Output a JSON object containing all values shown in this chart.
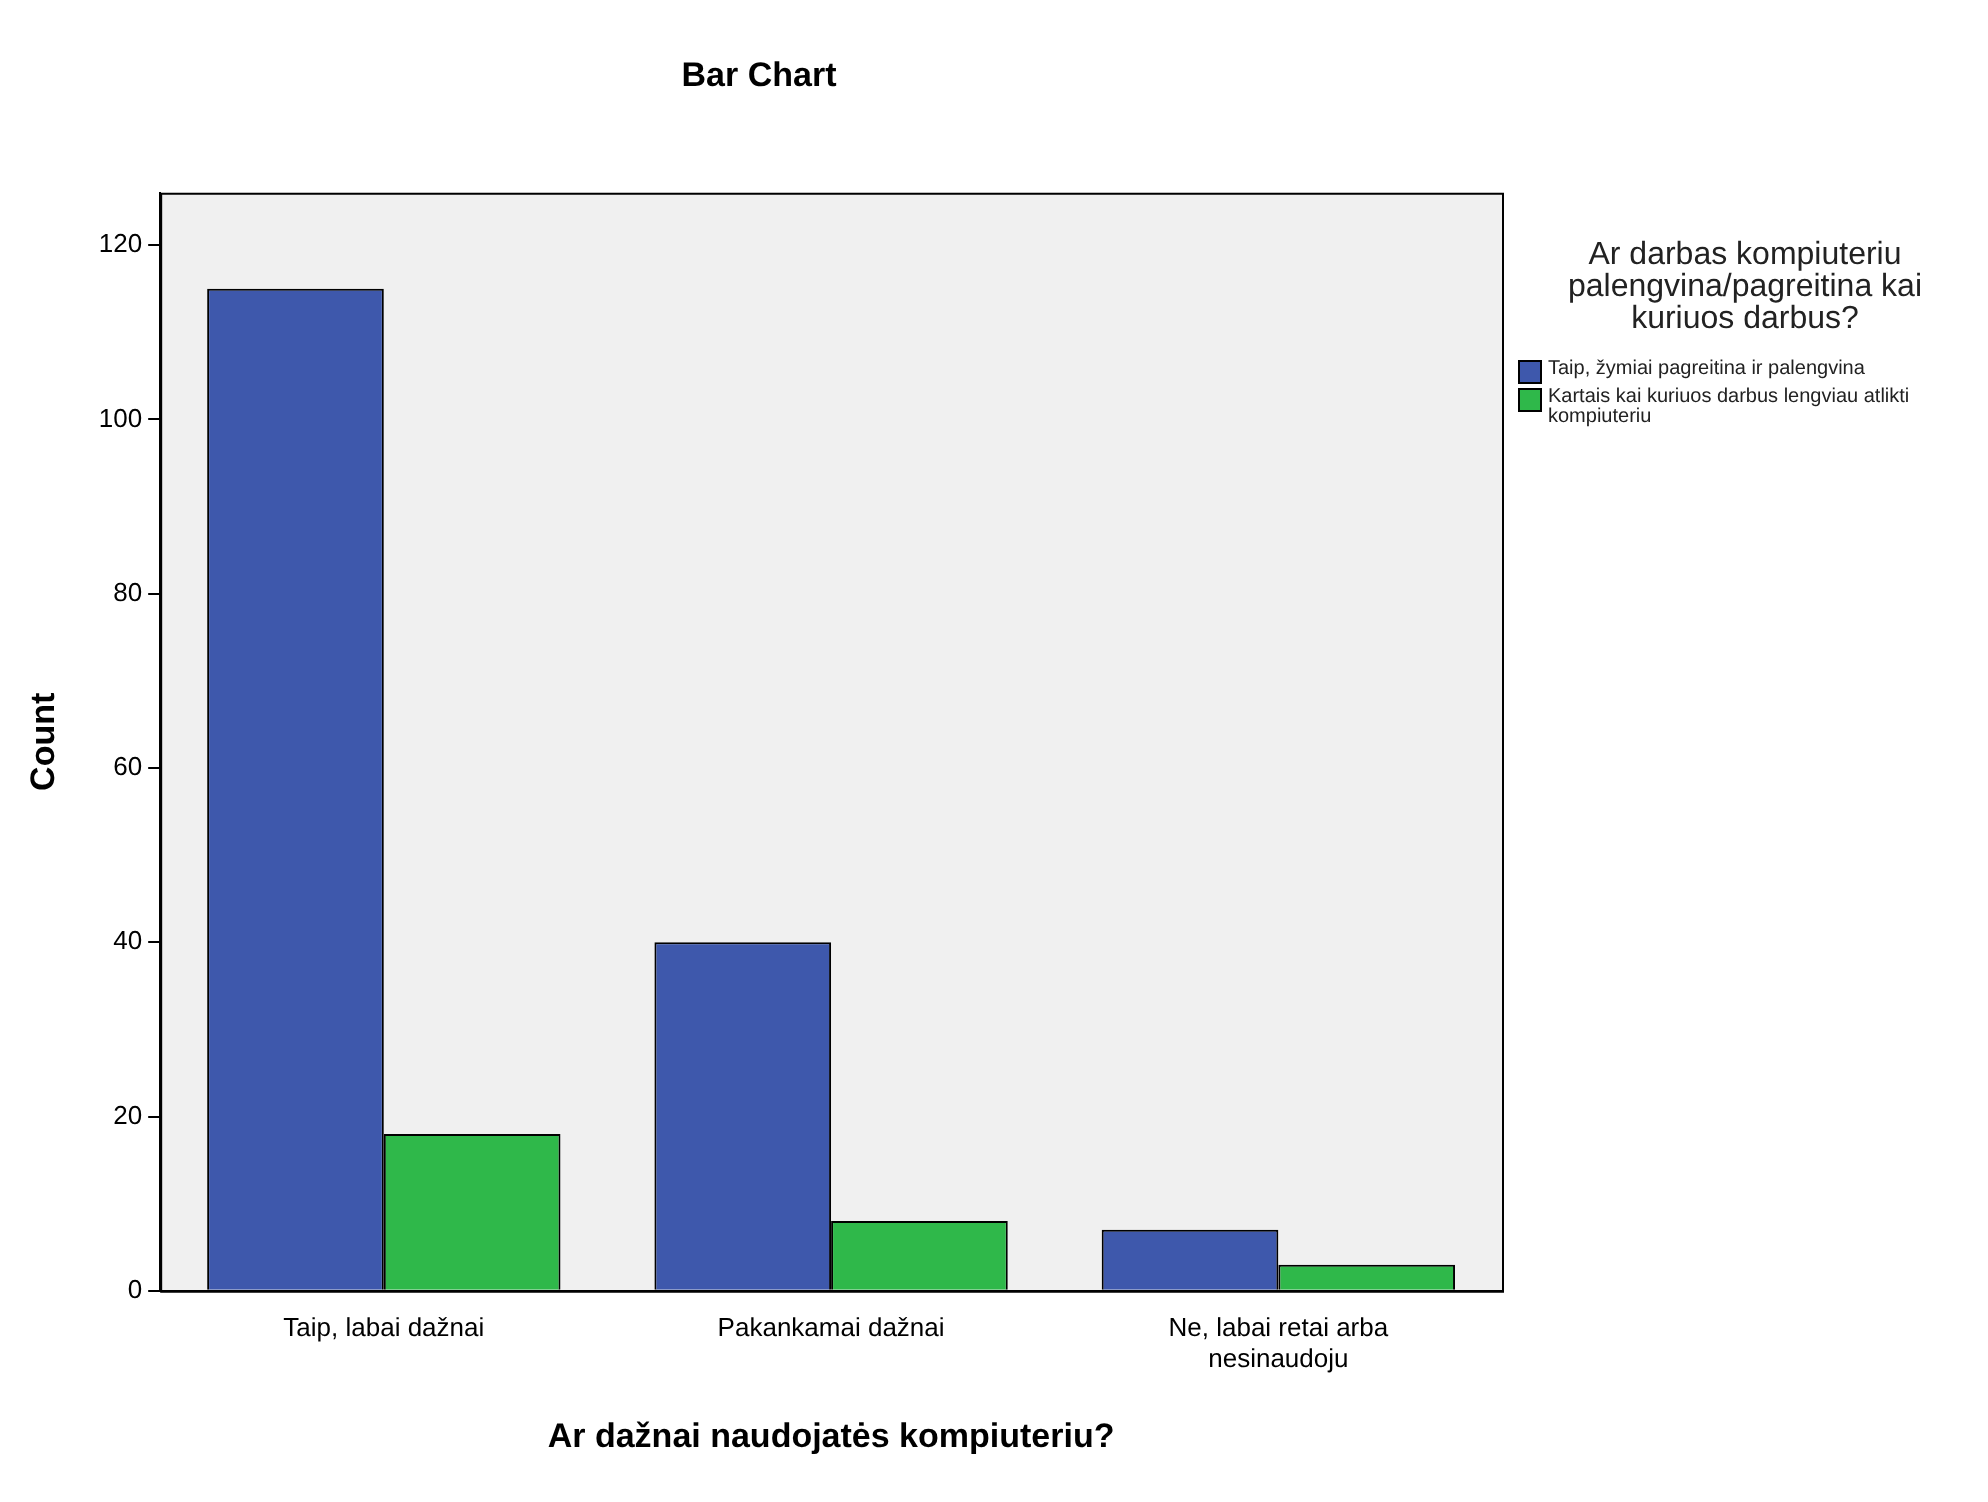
{
  "chart_data": {
    "type": "bar",
    "title": "Bar Chart",
    "xlabel": "Ar dažnai naudojatės kompiuteriu?",
    "ylabel": "Count",
    "legend_title": "Ar darbas kompiuteriu palengvina/pagreitina kai kuriuos darbus?",
    "legend": "right",
    "grid": false,
    "categories": [
      "Taip, labai dažnai",
      "Pakankamai dažnai",
      "Ne, labai retai arba nesinaudoju"
    ],
    "series": [
      {
        "name": "Taip, žymiai pagreitina ir palengvina",
        "color": "#3e58ac",
        "values": [
          115,
          40,
          7
        ]
      },
      {
        "name": "Kartais kai kuriuos darbus lengviau atlikti kompiuteriu",
        "color": "#2fb84a",
        "values": [
          18,
          8,
          3
        ]
      }
    ],
    "ylim": [
      0,
      126
    ],
    "yticks": [
      0,
      20,
      40,
      60,
      80,
      100,
      120
    ]
  }
}
